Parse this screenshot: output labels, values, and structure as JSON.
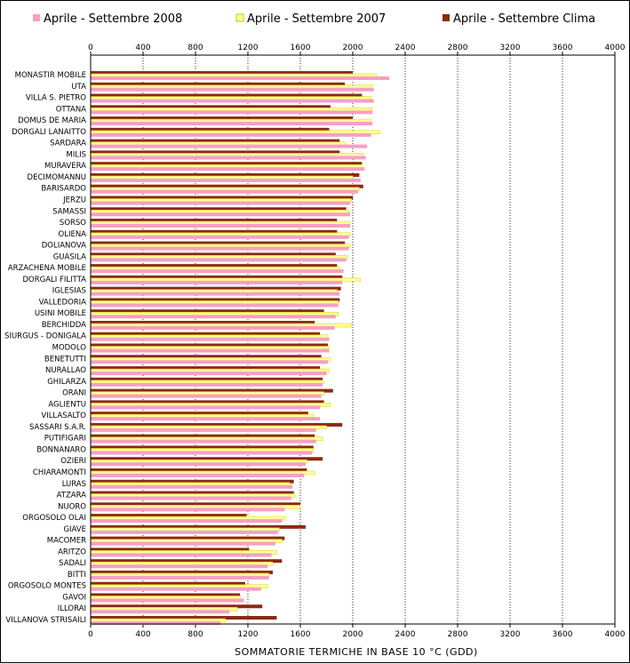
{
  "chart_data": {
    "type": "bar",
    "orientation": "horizontal",
    "xlabel": "SOMMATORIE TERMICHE IN BASE 10 °C (GDD)",
    "xlim": [
      0,
      4000
    ],
    "xticks": [
      0,
      400,
      800,
      1200,
      1600,
      2000,
      2400,
      2800,
      3200,
      3600,
      4000
    ],
    "grid": "vertical-dotted",
    "legend_position": "top",
    "categories": [
      "MONASTIR MOBILE",
      "UTA",
      "VILLA S. PIETRO",
      "OTTANA",
      "DOMUS DE MARIA",
      "DORGALI LANAITTO",
      "SARDARA",
      "MILIS",
      "MURAVERA",
      "DECIMOMANNU",
      "BARISARDO",
      "JERZU",
      "SAMASSI",
      "SORSO",
      "OLIENA",
      "DOLIANOVA",
      "GUASILA",
      "ARZACHENA MOBILE",
      "DORGALI FILITTA",
      "IGLESIAS",
      "VALLEDORIA",
      "USINI MOBILE",
      "BERCHIDDA",
      "SIURGUS - DONIGALA",
      "MODOLO",
      "BENETUTTI",
      "NURALLAO",
      "GHILARZA",
      "ORANI",
      "AGLIENTU",
      "VILLASALTO",
      "SASSARI S.A.R.",
      "PUTIFIGARI",
      "BONNANARO",
      "OZIERI",
      "CHIARAMONTI",
      "LURAS",
      "ATZARA",
      "NUORO",
      "ORGOSOLO OLAI",
      "GIAVE",
      "MACOMER",
      "ARITZO",
      "SADALI",
      "BITTI",
      "ORGOSOLO MONTES",
      "GAVOI",
      "ILLORAI",
      "VILLANOVA STRISAILI"
    ],
    "series": [
      {
        "name": "Aprile - Settembre Clima",
        "color": "#8b2a12",
        "values": [
          2000,
          1940,
          2070,
          1830,
          2000,
          1820,
          1900,
          1900,
          2070,
          2050,
          2080,
          2000,
          1950,
          1880,
          1880,
          1940,
          1870,
          1880,
          1920,
          1910,
          1900,
          1780,
          1710,
          1750,
          1810,
          1760,
          1750,
          1770,
          1850,
          1780,
          1660,
          1920,
          1710,
          1700,
          1770,
          1650,
          1550,
          1550,
          1600,
          1190,
          1640,
          1480,
          1210,
          1460,
          1390,
          1180,
          1140,
          1310,
          1420
        ]
      },
      {
        "name": "Aprile - Settembre 2007",
        "color": "#ffff99",
        "values": [
          2180,
          2150,
          2140,
          2150,
          2140,
          2210,
          1940,
          2080,
          2070,
          2000,
          2050,
          1990,
          1970,
          1980,
          1980,
          1980,
          1960,
          1900,
          2060,
          1880,
          1890,
          1890,
          1990,
          1810,
          1820,
          1830,
          1820,
          1780,
          1780,
          1830,
          1700,
          1800,
          1770,
          1700,
          1650,
          1710,
          1520,
          1560,
          1600,
          1480,
          1440,
          1460,
          1420,
          1390,
          1360,
          1350,
          1140,
          1120,
          1030
        ]
      },
      {
        "name": "Aprile - Settembre 2008",
        "color": "#f5a0c4",
        "values": [
          2280,
          2160,
          2160,
          2150,
          2150,
          2140,
          2110,
          2100,
          2090,
          2060,
          2040,
          1980,
          1980,
          1980,
          1970,
          1970,
          1950,
          1930,
          1920,
          1900,
          1890,
          1870,
          1860,
          1820,
          1820,
          1810,
          1800,
          1770,
          1760,
          1750,
          1750,
          1720,
          1720,
          1690,
          1640,
          1630,
          1540,
          1530,
          1480,
          1460,
          1430,
          1410,
          1380,
          1350,
          1360,
          1300,
          1170,
          1060,
          990
        ]
      }
    ]
  }
}
